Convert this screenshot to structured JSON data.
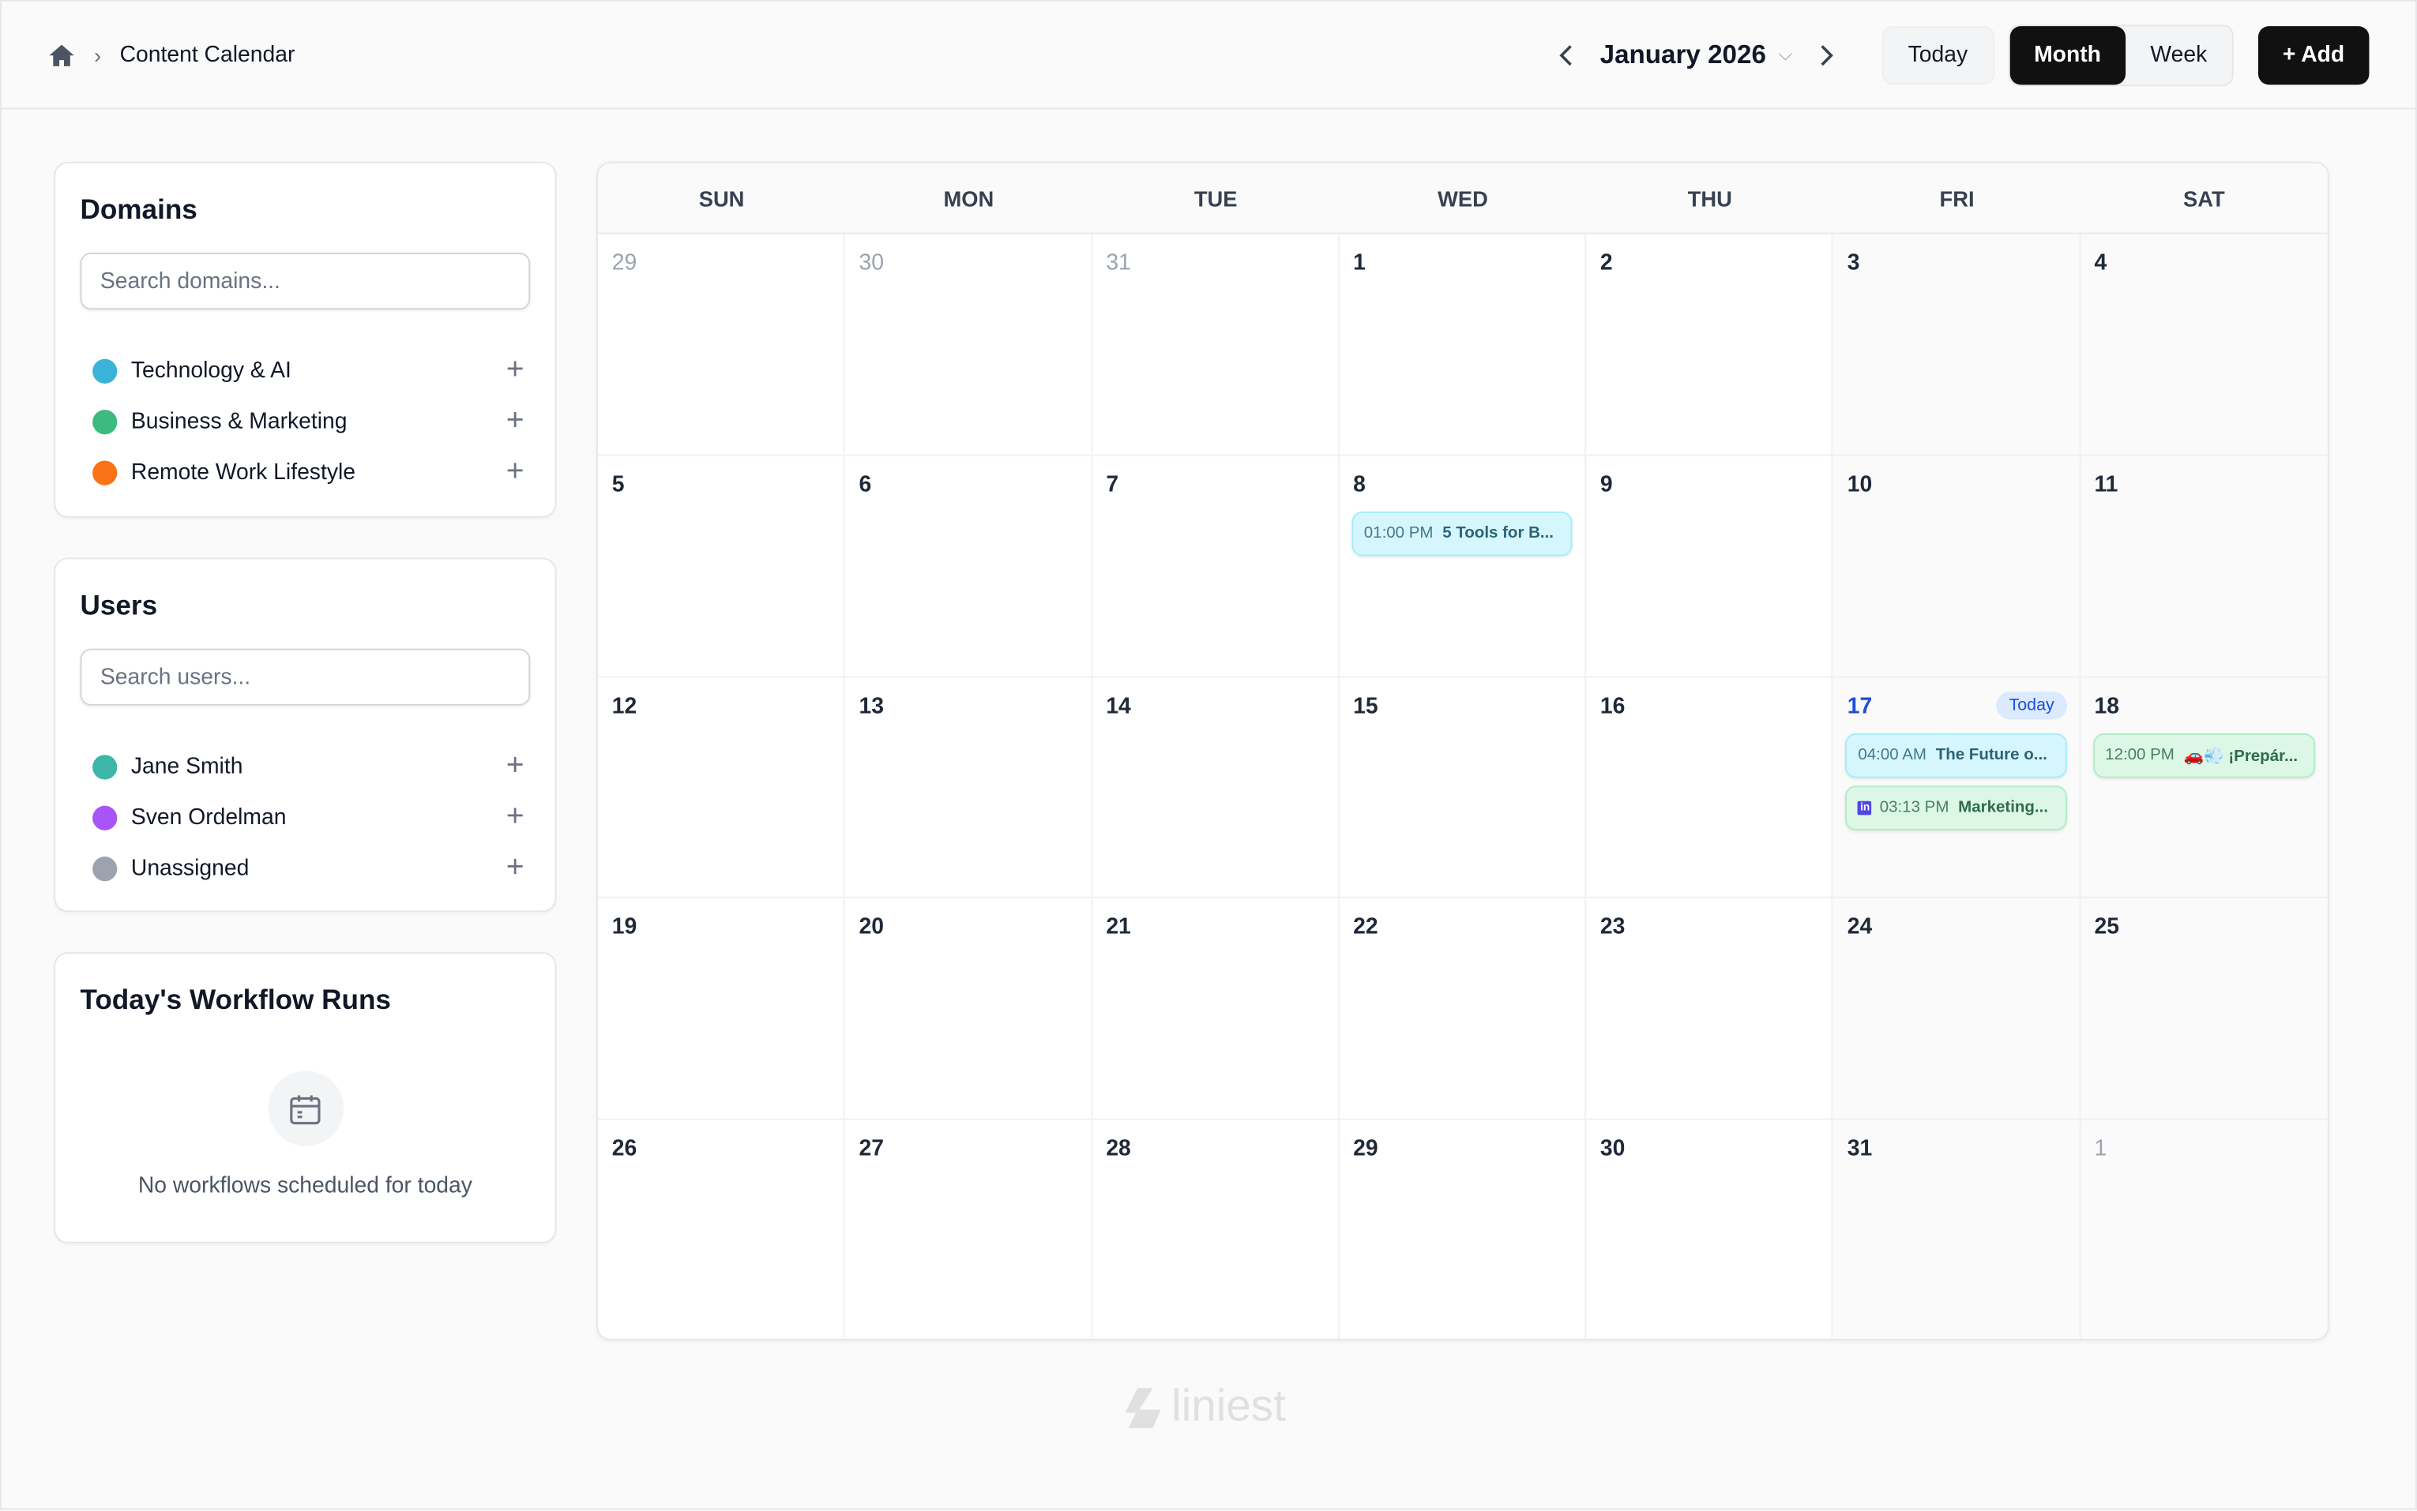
{
  "header": {
    "breadcrumb": "Content Calendar",
    "month": "January 2026",
    "today": "Today",
    "month_view": "Month",
    "week_view": "Week",
    "add": "+ Add"
  },
  "domains": {
    "title": "Domains",
    "placeholder": "Search domains...",
    "items": [
      {
        "label": "Technology & AI",
        "color": "#3bb3d9"
      },
      {
        "label": "Business & Marketing",
        "color": "#3dba7f"
      },
      {
        "label": "Remote Work Lifestyle",
        "color": "#f97316"
      }
    ]
  },
  "users": {
    "title": "Users",
    "placeholder": "Search users...",
    "items": [
      {
        "label": "Jane Smith",
        "color": "#3cb6a8"
      },
      {
        "label": "Sven Ordelman",
        "color": "#a855f7"
      },
      {
        "label": "Unassigned",
        "color": "#9ca3af"
      }
    ]
  },
  "workflows": {
    "title": "Today's Workflow Runs",
    "empty": "No workflows scheduled for today"
  },
  "calendar": {
    "weekdays": [
      "SUN",
      "MON",
      "TUE",
      "WED",
      "THU",
      "FRI",
      "SAT"
    ],
    "days": [
      "29",
      "30",
      "31",
      "1",
      "2",
      "3",
      "4",
      "5",
      "6",
      "7",
      "8",
      "9",
      "10",
      "11",
      "12",
      "13",
      "14",
      "15",
      "16",
      "17",
      "18",
      "19",
      "20",
      "21",
      "22",
      "23",
      "24",
      "25",
      "26",
      "27",
      "28",
      "29",
      "30",
      "31",
      "1"
    ],
    "today_badge": "Today",
    "events": [
      {
        "day_index": 10,
        "time": "01:00 PM",
        "title": "5 Tools for B...",
        "color": "cyan"
      },
      {
        "day_index": 19,
        "time": "04:00 AM",
        "title": "The Future o...",
        "color": "cyan"
      },
      {
        "day_index": 19,
        "time": "03:13 PM",
        "title": "Marketing...",
        "color": "green",
        "icon": "linkedin"
      },
      {
        "day_index": 20,
        "time": "12:00 PM",
        "title": "🚗💨 ¡Prepár...",
        "color": "green"
      }
    ]
  },
  "brand": "liniest"
}
